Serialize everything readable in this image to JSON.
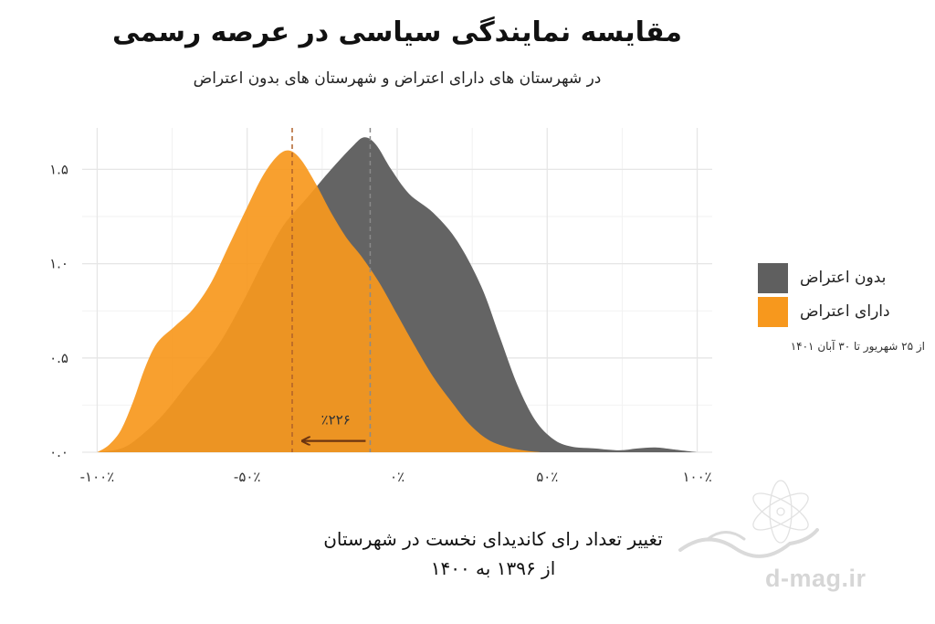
{
  "title": "مقایسه نمایندگی سیاسی در عرصه رسمی",
  "subtitle": "در شهرستان های دارای اعتراض و شهرستان های بدون اعتراض",
  "legend": {
    "items": [
      {
        "label": "بدون اعتراض",
        "color": "#5f5f5f"
      },
      {
        "label": "دارای اعتراض",
        "color": "#f7981d"
      }
    ],
    "note": "از ۲۵ شهریور تا ۳۰ آبان ۱۴۰۱"
  },
  "annotation": {
    "label": "٪۲۲۶"
  },
  "xtitle": {
    "line1": "تغییر تعداد رای کاندیدای نخست در شهرستان",
    "line2": "از ۱۳۹۶ به ۱۴۰۰"
  },
  "watermark": "d-mag.ir",
  "chart_data": {
    "type": "area",
    "x_ticks": [
      {
        "value": -100,
        "label": "-۱۰۰٪"
      },
      {
        "value": -50,
        "label": "-۵۰٪"
      },
      {
        "value": 0,
        "label": "۰٪"
      },
      {
        "value": 50,
        "label": "۵۰٪"
      },
      {
        "value": 100,
        "label": "۱۰۰٪"
      }
    ],
    "y_ticks": [
      {
        "value": 0,
        "label": "۰.۰"
      },
      {
        "value": 0.5,
        "label": "۰.۵"
      },
      {
        "value": 1.0,
        "label": "۱.۰"
      },
      {
        "value": 1.5,
        "label": "۱.۵"
      }
    ],
    "xlim": [
      -105,
      105
    ],
    "ylim": [
      0,
      1.72
    ],
    "grid": true,
    "series": [
      {
        "name": "بدون اعتراض",
        "color": "#5f5f5f",
        "mean": -9,
        "points": [
          [
            -100,
            0
          ],
          [
            -92,
            0.02
          ],
          [
            -86,
            0.08
          ],
          [
            -78,
            0.2
          ],
          [
            -70,
            0.36
          ],
          [
            -60,
            0.56
          ],
          [
            -52,
            0.78
          ],
          [
            -45,
            1.0
          ],
          [
            -38,
            1.2
          ],
          [
            -30,
            1.35
          ],
          [
            -22,
            1.5
          ],
          [
            -15,
            1.62
          ],
          [
            -11,
            1.67
          ],
          [
            -7,
            1.63
          ],
          [
            -2,
            1.5
          ],
          [
            4,
            1.37
          ],
          [
            12,
            1.27
          ],
          [
            20,
            1.12
          ],
          [
            28,
            0.88
          ],
          [
            34,
            0.62
          ],
          [
            40,
            0.36
          ],
          [
            46,
            0.17
          ],
          [
            52,
            0.07
          ],
          [
            58,
            0.03
          ],
          [
            66,
            0.02
          ],
          [
            74,
            0.01
          ],
          [
            80,
            0.02
          ],
          [
            86,
            0.025
          ],
          [
            92,
            0.015
          ],
          [
            100,
            0.0
          ]
        ]
      },
      {
        "name": "دارای اعتراض",
        "color": "#f7981d",
        "mean": -35,
        "points": [
          [
            -100,
            0
          ],
          [
            -96,
            0.04
          ],
          [
            -92,
            0.12
          ],
          [
            -88,
            0.27
          ],
          [
            -84,
            0.45
          ],
          [
            -80,
            0.58
          ],
          [
            -74,
            0.67
          ],
          [
            -68,
            0.76
          ],
          [
            -62,
            0.9
          ],
          [
            -56,
            1.1
          ],
          [
            -50,
            1.3
          ],
          [
            -45,
            1.46
          ],
          [
            -40,
            1.57
          ],
          [
            -36,
            1.6
          ],
          [
            -32,
            1.55
          ],
          [
            -27,
            1.42
          ],
          [
            -22,
            1.27
          ],
          [
            -17,
            1.14
          ],
          [
            -12,
            1.04
          ],
          [
            -6,
            0.9
          ],
          [
            0,
            0.73
          ],
          [
            6,
            0.56
          ],
          [
            12,
            0.4
          ],
          [
            18,
            0.27
          ],
          [
            24,
            0.15
          ],
          [
            30,
            0.07
          ],
          [
            36,
            0.03
          ],
          [
            42,
            0.01
          ],
          [
            48,
            0.0
          ]
        ]
      }
    ]
  }
}
